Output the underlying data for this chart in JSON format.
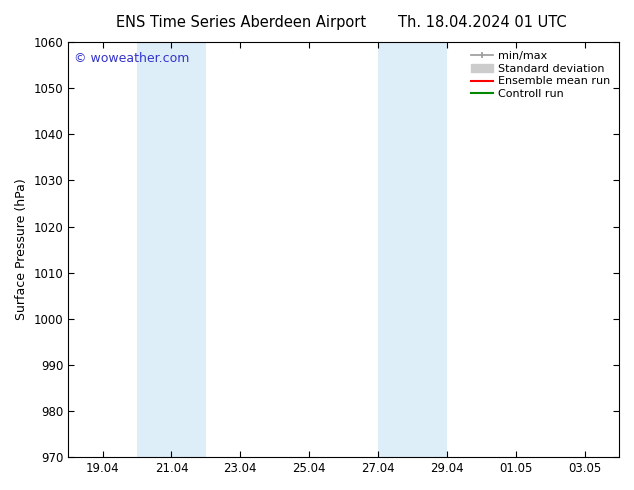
{
  "title_left": "ENS Time Series Aberdeen Airport",
  "title_right": "Th. 18.04.2024 01 UTC",
  "ylabel": "Surface Pressure (hPa)",
  "ylim": [
    970,
    1060
  ],
  "yticks": [
    970,
    980,
    990,
    1000,
    1010,
    1020,
    1030,
    1040,
    1050,
    1060
  ],
  "xlim": [
    0,
    16
  ],
  "x_tick_labels": [
    "19.04",
    "21.04",
    "23.04",
    "25.04",
    "27.04",
    "29.04",
    "01.05",
    "03.05"
  ],
  "x_tick_positions": [
    1,
    3,
    5,
    7,
    9,
    11,
    13,
    15
  ],
  "shaded_bands": [
    {
      "x_start": 2,
      "x_end": 4,
      "color": "#ddeef8"
    },
    {
      "x_start": 9,
      "x_end": 11,
      "color": "#ddeef8"
    }
  ],
  "watermark_text": "© woweather.com",
  "watermark_color": "#3333cc",
  "legend_labels": [
    "min/max",
    "Standard deviation",
    "Ensemble mean run",
    "Controll run"
  ],
  "legend_colors": [
    "#999999",
    "#cccccc",
    "#ff0000",
    "#008800"
  ],
  "bg_color": "#ffffff",
  "plot_bg_color": "#ffffff",
  "title_fontsize": 10.5,
  "axis_label_fontsize": 9,
  "tick_fontsize": 8.5,
  "legend_fontsize": 8
}
